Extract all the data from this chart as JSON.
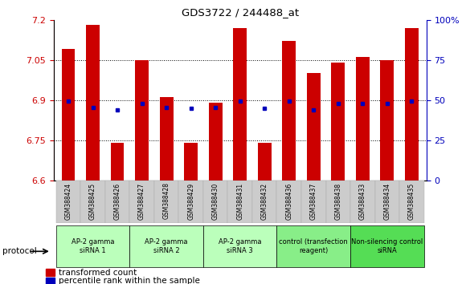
{
  "title": "GDS3722 / 244488_at",
  "samples": [
    "GSM388424",
    "GSM388425",
    "GSM388426",
    "GSM388427",
    "GSM388428",
    "GSM388429",
    "GSM388430",
    "GSM388431",
    "GSM388432",
    "GSM388436",
    "GSM388437",
    "GSM388438",
    "GSM388433",
    "GSM388434",
    "GSM388435"
  ],
  "bar_top": [
    7.09,
    7.18,
    6.74,
    7.05,
    6.91,
    6.74,
    6.89,
    7.17,
    6.74,
    7.12,
    7.0,
    7.04,
    7.06,
    7.05,
    7.17
  ],
  "bar_bottom": 6.6,
  "blue_y": [
    6.895,
    6.872,
    6.863,
    6.887,
    6.872,
    6.868,
    6.872,
    6.895,
    6.868,
    6.895,
    6.863,
    6.888,
    6.888,
    6.887,
    6.895
  ],
  "ylim_left": [
    6.6,
    7.2
  ],
  "ylim_right": [
    0,
    100
  ],
  "yticks_left": [
    6.6,
    6.75,
    6.9,
    7.05,
    7.2
  ],
  "ytick_labels_left": [
    "6.6",
    "6.75",
    "6.9",
    "7.05",
    "7.2"
  ],
  "yticks_right": [
    0,
    25,
    50,
    75,
    100
  ],
  "ytick_labels_right": [
    "0",
    "25",
    "50",
    "75",
    "100%"
  ],
  "groups": [
    {
      "label": "AP-2 gamma\nsiRNA 1",
      "indices": [
        0,
        1,
        2
      ],
      "color": "#bbffbb"
    },
    {
      "label": "AP-2 gamma\nsiRNA 2",
      "indices": [
        3,
        4,
        5
      ],
      "color": "#bbffbb"
    },
    {
      "label": "AP-2 gamma\nsiRNA 3",
      "indices": [
        6,
        7,
        8
      ],
      "color": "#bbffbb"
    },
    {
      "label": "control (transfection\nreagent)",
      "indices": [
        9,
        10,
        11
      ],
      "color": "#88ee88"
    },
    {
      "label": "Non-silencing control\nsiRNA",
      "indices": [
        12,
        13,
        14
      ],
      "color": "#55dd55"
    }
  ],
  "protocol_label": "protocol",
  "bar_color": "#cc0000",
  "blue_color": "#0000bb",
  "bar_width": 0.55,
  "xtick_label_bg": "#d0d0d0"
}
